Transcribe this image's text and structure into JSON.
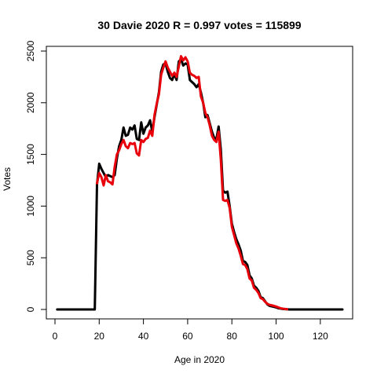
{
  "chart_data": {
    "type": "line",
    "title": "30 Davie 2020 R = 0.997 votes = 115899",
    "xlabel": "Age in 2020",
    "ylabel": "Votes",
    "xlim": [
      1,
      130
    ],
    "ylim": [
      0,
      2500
    ],
    "x_ticks": [
      "0",
      "20",
      "40",
      "60",
      "80",
      "100",
      "120"
    ],
    "y_ticks": [
      "0",
      "500",
      "1000",
      "1500",
      "2000",
      "2500"
    ],
    "grid": false,
    "legend": "none",
    "series": [
      {
        "color": "#000000",
        "points": [
          [
            1,
            0
          ],
          [
            18,
            0
          ],
          [
            19,
            1210
          ],
          [
            20,
            1410
          ],
          [
            21,
            1360
          ],
          [
            22,
            1320
          ],
          [
            23,
            1280
          ],
          [
            24,
            1300
          ],
          [
            25,
            1290
          ],
          [
            26,
            1280
          ],
          [
            27,
            1300
          ],
          [
            28,
            1460
          ],
          [
            29,
            1580
          ],
          [
            30,
            1640
          ],
          [
            31,
            1760
          ],
          [
            32,
            1680
          ],
          [
            33,
            1690
          ],
          [
            34,
            1760
          ],
          [
            35,
            1740
          ],
          [
            36,
            1780
          ],
          [
            37,
            1650
          ],
          [
            38,
            1640
          ],
          [
            39,
            1810
          ],
          [
            40,
            1700
          ],
          [
            41,
            1760
          ],
          [
            42,
            1780
          ],
          [
            43,
            1830
          ],
          [
            44,
            1720
          ],
          [
            45,
            1860
          ],
          [
            46,
            1980
          ],
          [
            47,
            2100
          ],
          [
            48,
            2300
          ],
          [
            49,
            2370
          ],
          [
            50,
            2380
          ],
          [
            51,
            2300
          ],
          [
            52,
            2240
          ],
          [
            53,
            2220
          ],
          [
            54,
            2280
          ],
          [
            55,
            2220
          ],
          [
            56,
            2400
          ],
          [
            57,
            2420
          ],
          [
            58,
            2360
          ],
          [
            59,
            2380
          ],
          [
            60,
            2370
          ],
          [
            61,
            2220
          ],
          [
            62,
            2200
          ],
          [
            63,
            2180
          ],
          [
            64,
            2150
          ],
          [
            65,
            2180
          ],
          [
            66,
            2100
          ],
          [
            67,
            2000
          ],
          [
            68,
            1860
          ],
          [
            69,
            1880
          ],
          [
            70,
            1800
          ],
          [
            71,
            1720
          ],
          [
            72,
            1660
          ],
          [
            73,
            1650
          ],
          [
            74,
            1770
          ],
          [
            75,
            1550
          ],
          [
            76,
            1150
          ],
          [
            77,
            1130
          ],
          [
            78,
            1140
          ],
          [
            79,
            1000
          ],
          [
            80,
            830
          ],
          [
            81,
            750
          ],
          [
            82,
            680
          ],
          [
            83,
            630
          ],
          [
            84,
            570
          ],
          [
            85,
            470
          ],
          [
            86,
            460
          ],
          [
            87,
            430
          ],
          [
            88,
            330
          ],
          [
            89,
            300
          ],
          [
            90,
            230
          ],
          [
            91,
            210
          ],
          [
            92,
            180
          ],
          [
            93,
            120
          ],
          [
            94,
            110
          ],
          [
            95,
            80
          ],
          [
            96,
            50
          ],
          [
            97,
            35
          ],
          [
            98,
            30
          ],
          [
            99,
            25
          ],
          [
            100,
            20
          ],
          [
            101,
            12
          ],
          [
            102,
            8
          ],
          [
            103,
            5
          ],
          [
            104,
            3
          ],
          [
            105,
            2
          ],
          [
            106,
            0
          ],
          [
            130,
            0
          ]
        ]
      },
      {
        "color": "#e8000b",
        "points": [
          [
            19,
            1220
          ],
          [
            20,
            1320
          ],
          [
            21,
            1280
          ],
          [
            22,
            1200
          ],
          [
            23,
            1300
          ],
          [
            24,
            1240
          ],
          [
            25,
            1230
          ],
          [
            26,
            1210
          ],
          [
            27,
            1380
          ],
          [
            28,
            1500
          ],
          [
            29,
            1540
          ],
          [
            30,
            1600
          ],
          [
            31,
            1640
          ],
          [
            32,
            1580
          ],
          [
            33,
            1560
          ],
          [
            34,
            1610
          ],
          [
            35,
            1600
          ],
          [
            36,
            1610
          ],
          [
            37,
            1510
          ],
          [
            38,
            1490
          ],
          [
            39,
            1640
          ],
          [
            40,
            1620
          ],
          [
            41,
            1650
          ],
          [
            42,
            1660
          ],
          [
            43,
            1730
          ],
          [
            44,
            1680
          ],
          [
            45,
            1880
          ],
          [
            46,
            1990
          ],
          [
            47,
            2080
          ],
          [
            48,
            2270
          ],
          [
            49,
            2340
          ],
          [
            50,
            2400
          ],
          [
            51,
            2340
          ],
          [
            52,
            2300
          ],
          [
            53,
            2260
          ],
          [
            54,
            2290
          ],
          [
            55,
            2250
          ],
          [
            56,
            2350
          ],
          [
            57,
            2450
          ],
          [
            58,
            2410
          ],
          [
            59,
            2440
          ],
          [
            60,
            2400
          ],
          [
            61,
            2290
          ],
          [
            62,
            2270
          ],
          [
            63,
            2260
          ],
          [
            64,
            2240
          ],
          [
            65,
            2250
          ],
          [
            66,
            2060
          ],
          [
            67,
            2000
          ],
          [
            68,
            1900
          ],
          [
            69,
            1860
          ],
          [
            70,
            1780
          ],
          [
            71,
            1680
          ],
          [
            72,
            1640
          ],
          [
            73,
            1620
          ],
          [
            74,
            1720
          ],
          [
            75,
            1450
          ],
          [
            76,
            1060
          ],
          [
            77,
            1050
          ],
          [
            78,
            1060
          ],
          [
            79,
            980
          ],
          [
            80,
            800
          ],
          [
            81,
            720
          ],
          [
            82,
            640
          ],
          [
            83,
            590
          ],
          [
            84,
            520
          ],
          [
            85,
            440
          ],
          [
            86,
            430
          ],
          [
            87,
            390
          ],
          [
            88,
            300
          ],
          [
            89,
            280
          ],
          [
            90,
            210
          ],
          [
            91,
            190
          ],
          [
            92,
            160
          ],
          [
            93,
            110
          ],
          [
            94,
            100
          ],
          [
            95,
            75
          ],
          [
            96,
            55
          ],
          [
            97,
            45
          ],
          [
            98,
            40
          ],
          [
            99,
            35
          ],
          [
            100,
            28
          ],
          [
            101,
            20
          ],
          [
            102,
            12
          ],
          [
            103,
            8
          ],
          [
            104,
            5
          ],
          [
            105,
            2
          ]
        ]
      }
    ]
  }
}
